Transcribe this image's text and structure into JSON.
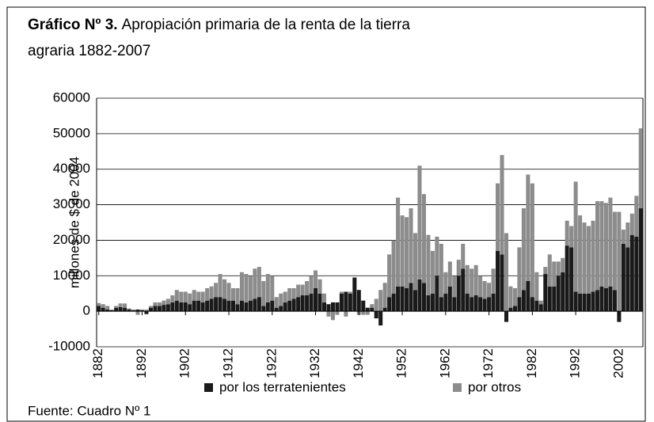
{
  "chart_data": {
    "type": "stacked_bar",
    "title": {
      "label": "Gráfico Nº 3.",
      "lines": [
        "Apropiación primaria de la renta de la tierra",
        "agraria 1882-2007"
      ]
    },
    "y_label": "millones de $ de 2004",
    "source": "Fuente: Cuadro Nº 1",
    "x": [
      1882,
      1883,
      1884,
      1885,
      1886,
      1887,
      1888,
      1889,
      1890,
      1891,
      1892,
      1893,
      1894,
      1895,
      1896,
      1897,
      1898,
      1899,
      1900,
      1901,
      1902,
      1903,
      1904,
      1905,
      1906,
      1907,
      1908,
      1909,
      1910,
      1911,
      1912,
      1913,
      1914,
      1915,
      1916,
      1917,
      1918,
      1919,
      1920,
      1921,
      1922,
      1923,
      1924,
      1925,
      1926,
      1927,
      1928,
      1929,
      1930,
      1931,
      1932,
      1933,
      1934,
      1935,
      1936,
      1937,
      1938,
      1939,
      1940,
      1941,
      1942,
      1943,
      1944,
      1945,
      1946,
      1947,
      1948,
      1949,
      1950,
      1951,
      1952,
      1953,
      1954,
      1955,
      1956,
      1957,
      1958,
      1959,
      1960,
      1961,
      1962,
      1963,
      1964,
      1965,
      1966,
      1967,
      1968,
      1969,
      1970,
      1971,
      1972,
      1973,
      1974,
      1975,
      1976,
      1977,
      1978,
      1979,
      1980,
      1981,
      1982,
      1983,
      1984,
      1985,
      1986,
      1987,
      1988,
      1989,
      1990,
      1991,
      1992,
      1993,
      1994,
      1995,
      1996,
      1997,
      1998,
      1999,
      2000,
      2001,
      2002,
      2003,
      2004,
      2005,
      2006,
      2007
    ],
    "xlim": [
      1881.5,
      2007.5
    ],
    "xticks": [
      1882,
      1892,
      1902,
      1912,
      1922,
      1932,
      1942,
      1952,
      1962,
      1972,
      1982,
      1992,
      2002
    ],
    "ylim": [
      -10000,
      60000
    ],
    "yticks": [
      -10000,
      0,
      10000,
      20000,
      30000,
      40000,
      50000,
      60000
    ],
    "grid": true,
    "legend": "bottom",
    "series": [
      {
        "name": "por los terratenientes",
        "color": "#1a1a1a",
        "values": [
          1500,
          1000,
          500,
          300,
          1000,
          1200,
          1000,
          500,
          300,
          500,
          300,
          -800,
          1000,
          1500,
          1500,
          1800,
          2000,
          2500,
          3000,
          2500,
          2500,
          2000,
          3000,
          3000,
          2500,
          3000,
          3500,
          4000,
          4000,
          3500,
          3000,
          3000,
          2000,
          3000,
          2500,
          3000,
          3500,
          4000,
          1500,
          2500,
          3000,
          1000,
          1500,
          2500,
          3000,
          3500,
          4000,
          4500,
          4500,
          5000,
          6500,
          5000,
          2500,
          2000,
          2500,
          2500,
          5000,
          5500,
          5000,
          9500,
          6000,
          3000,
          1000,
          1000,
          -2000,
          -4000,
          1000,
          4000,
          5000,
          7000,
          7000,
          6500,
          8000,
          6000,
          9000,
          8000,
          4500,
          5000,
          10000,
          4000,
          5000,
          7000,
          4000,
          10000,
          12000,
          5000,
          4000,
          4500,
          4000,
          3500,
          4000,
          5000,
          17000,
          16000,
          -3000,
          1000,
          1500,
          4000,
          6000,
          8500,
          4000,
          3000,
          2000,
          10500,
          7000,
          7000,
          10000,
          11000,
          18500,
          18000,
          5500,
          5000,
          5000,
          5000,
          5500,
          6000,
          7000,
          6500,
          7000,
          6000,
          -3000,
          19000,
          18000,
          21500,
          21000,
          29000
        ]
      },
      {
        "name": "por otros",
        "color": "#8c8c8c",
        "values": [
          800,
          1000,
          1000,
          200,
          500,
          1000,
          1200,
          300,
          200,
          -1000,
          200,
          500,
          500,
          1000,
          1000,
          1200,
          1500,
          2000,
          3000,
          3000,
          3000,
          3000,
          3000,
          2500,
          3000,
          3500,
          3500,
          4000,
          6500,
          5500,
          5000,
          3500,
          4500,
          8000,
          8000,
          7000,
          8500,
          8500,
          7000,
          8000,
          7000,
          3000,
          3500,
          3000,
          3500,
          3000,
          3500,
          3000,
          4000,
          5000,
          5000,
          4000,
          2500,
          -1500,
          -2500,
          -1000,
          500,
          -1500,
          500,
          0,
          -1000,
          -1000,
          -1000,
          1000,
          3500,
          6000,
          7000,
          12000,
          15000,
          25000,
          20000,
          20000,
          21000,
          16000,
          32000,
          25000,
          17000,
          12000,
          11000,
          15000,
          6000,
          7000,
          6000,
          4500,
          7000,
          8000,
          8000,
          8500,
          6000,
          5000,
          4000,
          7000,
          19000,
          28000,
          22000,
          6000,
          5000,
          14000,
          23000,
          30000,
          32000,
          8000,
          1000,
          2000,
          9000,
          7000,
          4000,
          4000,
          7000,
          6000,
          31000,
          22000,
          20000,
          19000,
          20000,
          25000,
          24000,
          24000,
          25000,
          22000,
          28000,
          4000,
          7000,
          6000,
          11500,
          22500
        ]
      }
    ]
  }
}
